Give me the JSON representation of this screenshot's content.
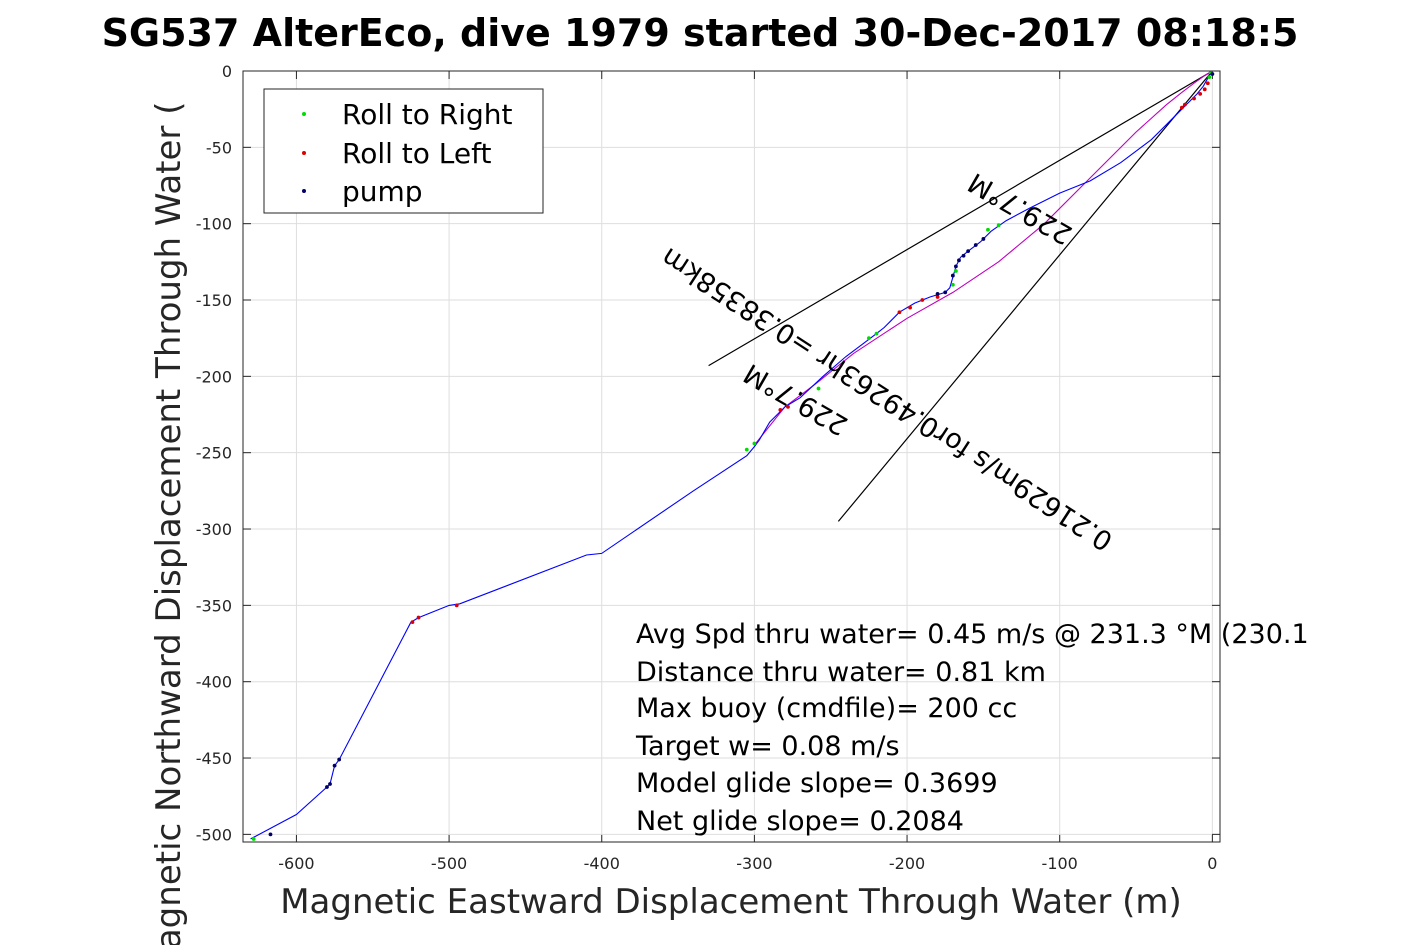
{
  "chart_data": {
    "type": "line",
    "title": "SG537 AlterEco, dive 1979 started 30-Dec-2017 08:18:5",
    "xlabel": "Magnetic Eastward Displacement Through Water (m)",
    "ylabel": "Magnetic Northward Displacement Through Water (",
    "xlim": [
      -635,
      5
    ],
    "ylim": [
      -505,
      0
    ],
    "xticks": [
      -600,
      -500,
      -400,
      -300,
      -200,
      -100,
      0
    ],
    "yticks": [
      0,
      -50,
      -100,
      -150,
      -200,
      -250,
      -300,
      -350,
      -400,
      -450,
      -500
    ],
    "grid": true,
    "legend_position": "top-left",
    "legend": [
      "Roll to Right",
      "Roll to Left",
      "pump"
    ],
    "colors": {
      "track": "#0000ff",
      "model_track": "#c000c0",
      "roll_right": "#00dd00",
      "roll_left": "#dd0000",
      "pump": "#000066",
      "axis": "#262626",
      "grid": "#dedede"
    },
    "track": [
      [
        0,
        0
      ],
      [
        -2,
        -3
      ],
      [
        -6,
        -10
      ],
      [
        -10,
        -15
      ],
      [
        -15,
        -20
      ],
      [
        -25,
        -30
      ],
      [
        -40,
        -45
      ],
      [
        -60,
        -60
      ],
      [
        -80,
        -72
      ],
      [
        -100,
        -80
      ],
      [
        -120,
        -90
      ],
      [
        -135,
        -98
      ],
      [
        -145,
        -105
      ],
      [
        -152,
        -112
      ],
      [
        -160,
        -118
      ],
      [
        -165,
        -122
      ],
      [
        -168,
        -128
      ],
      [
        -170,
        -135
      ],
      [
        -172,
        -142
      ],
      [
        -175,
        -145
      ],
      [
        -185,
        -148
      ],
      [
        -195,
        -152
      ],
      [
        -205,
        -158
      ],
      [
        -215,
        -168
      ],
      [
        -220,
        -172
      ],
      [
        -228,
        -178
      ],
      [
        -240,
        -187
      ],
      [
        -255,
        -200
      ],
      [
        -270,
        -214
      ],
      [
        -280,
        -220
      ],
      [
        -290,
        -230
      ],
      [
        -297,
        -242
      ],
      [
        -300,
        -246
      ],
      [
        -305,
        -252
      ],
      [
        -340,
        -275
      ],
      [
        -400,
        -316
      ],
      [
        -410,
        -317
      ],
      [
        -493,
        -349
      ],
      [
        -500,
        -350
      ],
      [
        -520,
        -358
      ],
      [
        -525,
        -361
      ],
      [
        -572,
        -451
      ],
      [
        -575,
        -455
      ],
      [
        -578,
        -467
      ],
      [
        -580,
        -469
      ],
      [
        -600,
        -487
      ],
      [
        -630,
        -503
      ]
    ],
    "model_track": [
      [
        0,
        0
      ],
      [
        -5,
        -3
      ],
      [
        -12,
        -8
      ],
      [
        -20,
        -14
      ],
      [
        -30,
        -22
      ],
      [
        -50,
        -40
      ],
      [
        -80,
        -70
      ],
      [
        -110,
        -100
      ],
      [
        -140,
        -125
      ],
      [
        -170,
        -145
      ],
      [
        -200,
        -162
      ],
      [
        -235,
        -185
      ],
      [
        -260,
        -205
      ],
      [
        -280,
        -220
      ],
      [
        -300,
        -245
      ]
    ],
    "roll_right": [
      [
        -1,
        -1
      ],
      [
        -2,
        -4
      ],
      [
        -140,
        -101
      ],
      [
        -147,
        -104
      ],
      [
        -168,
        -131
      ],
      [
        -170,
        -140
      ],
      [
        -220,
        -172
      ],
      [
        -225,
        -175
      ],
      [
        -258,
        -208
      ],
      [
        -300,
        -244
      ],
      [
        -305,
        -248
      ],
      [
        -628,
        -503
      ]
    ],
    "roll_left": [
      [
        -3,
        -8
      ],
      [
        -5,
        -12
      ],
      [
        -8,
        -15
      ],
      [
        -12,
        -18
      ],
      [
        -18,
        -22
      ],
      [
        -20,
        -24
      ],
      [
        -180,
        -148
      ],
      [
        -190,
        -150
      ],
      [
        -198,
        -155
      ],
      [
        -205,
        -158
      ],
      [
        -278,
        -220
      ],
      [
        -283,
        -222
      ],
      [
        -495,
        -350
      ],
      [
        -520,
        -358
      ],
      [
        -524,
        -361
      ]
    ],
    "pump": [
      [
        0,
        -2
      ],
      [
        -150,
        -110
      ],
      [
        -155,
        -114
      ],
      [
        -160,
        -118
      ],
      [
        -163,
        -121
      ],
      [
        -166,
        -124
      ],
      [
        -168,
        -128
      ],
      [
        -170,
        -134
      ],
      [
        -175,
        -145
      ],
      [
        -180,
        -146
      ],
      [
        -572,
        -451
      ],
      [
        -575,
        -455
      ],
      [
        -578,
        -467
      ],
      [
        -580,
        -469
      ],
      [
        -617,
        -500
      ]
    ],
    "reference_lines": [
      {
        "from": [
          0,
          0
        ],
        "to": [
          -330,
          -193
        ]
      },
      {
        "from": [
          0,
          0
        ],
        "to": [
          -245,
          -295
        ]
      }
    ],
    "annotations": [
      {
        "text": "229.7°M",
        "x": -123,
        "y": -85,
        "rotation": 210
      },
      {
        "text": "229.7°M",
        "x": -270,
        "y": -210,
        "rotation": 210
      },
      {
        "text": "0.21629m/s for0.49263hr =0.38358km",
        "x": -210,
        "y": -210,
        "rotation": 213
      }
    ],
    "info_lines": [
      "Avg Spd thru water=  0.45 m/s @ 231.3 °M (230.1",
      "Distance thru water=  0.81 km",
      "Max buoy (cmdfile)= 200 cc",
      "Target w= 0.08 m/s",
      "Model glide slope= 0.3699",
      "Net glide slope= 0.2084"
    ]
  }
}
